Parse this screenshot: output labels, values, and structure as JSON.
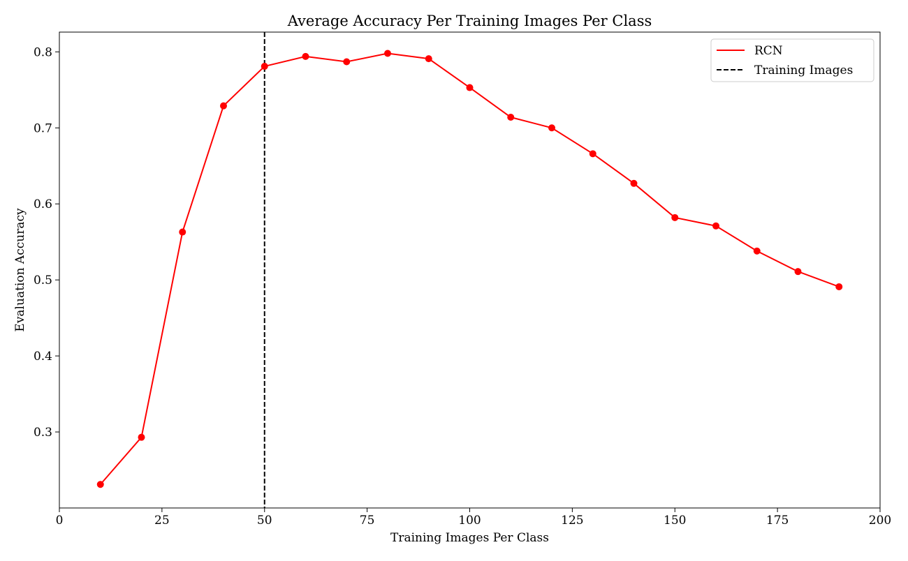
{
  "chart_data": {
    "type": "line",
    "title": "Average Accuracy Per Training Images Per Class",
    "xlabel": "Training Images Per Class",
    "ylabel": "Evaluation Accuracy",
    "xlim": [
      0,
      200
    ],
    "ylim": [
      0.2,
      0.826
    ],
    "xticks": [
      0,
      25,
      50,
      75,
      100,
      125,
      150,
      175,
      200
    ],
    "xtick_labels": [
      "0",
      "25",
      "50",
      "75",
      "100",
      "125",
      "150",
      "175",
      "200"
    ],
    "yticks": [
      0.3,
      0.4,
      0.5,
      0.6,
      0.7,
      0.8
    ],
    "ytick_labels": [
      "0.3",
      "0.4",
      "0.5",
      "0.6",
      "0.7",
      "0.8"
    ],
    "grid": false,
    "legend_position": "top-right",
    "series": [
      {
        "name": "RCN",
        "color": "#ff0000",
        "style": "solid",
        "marker": "circle",
        "x": [
          10,
          20,
          30,
          40,
          50,
          60,
          70,
          80,
          90,
          100,
          110,
          120,
          130,
          140,
          150,
          160,
          170,
          180,
          190
        ],
        "values": [
          0.231,
          0.293,
          0.563,
          0.729,
          0.781,
          0.794,
          0.787,
          0.798,
          0.791,
          0.753,
          0.714,
          0.7,
          0.666,
          0.627,
          0.582,
          0.571,
          0.538,
          0.511,
          0.491
        ]
      }
    ],
    "reference_lines": [
      {
        "name": "Training Images",
        "orientation": "vertical",
        "x": 50,
        "color": "#000000",
        "style": "dashed"
      }
    ]
  }
}
